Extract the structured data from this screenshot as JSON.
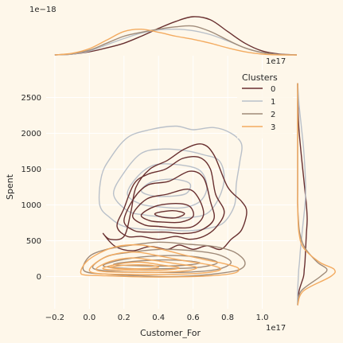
{
  "chart_data": {
    "type": "kde-joint",
    "xlabel": "Customer_For",
    "ylabel": "Spent",
    "x_offset_label": "1e17",
    "top_marginal_offset_label": "1e−18",
    "xlim": [
      -0.25,
      1.2
    ],
    "ylim": [
      -450,
      2950
    ],
    "x_ticks": [
      "−0.2",
      "0.0",
      "0.2",
      "0.4",
      "0.6",
      "0.8",
      "1.0"
    ],
    "x_tick_values": [
      -0.2,
      0.0,
      0.2,
      0.4,
      0.6,
      0.8,
      1.0
    ],
    "y_ticks": [
      "0",
      "500",
      "1000",
      "1500",
      "2000",
      "2500"
    ],
    "y_tick_values": [
      0,
      500,
      1000,
      1500,
      2000,
      2500
    ],
    "grid": true,
    "legend": {
      "title": "Clusters",
      "placement": "top-right"
    },
    "series": [
      {
        "name": "0",
        "color": "#682F2F",
        "contours": [
          [
            [
              0.08,
              600
            ],
            [
              0.12,
              520
            ],
            [
              0.2,
              560
            ],
            [
              0.24,
              900
            ],
            [
              0.27,
              1250
            ],
            [
              0.35,
              1500
            ],
            [
              0.45,
              1620
            ],
            [
              0.55,
              1780
            ],
            [
              0.65,
              1850
            ],
            [
              0.72,
              1700
            ],
            [
              0.8,
              1250
            ],
            [
              0.88,
              1050
            ],
            [
              0.91,
              900
            ],
            [
              0.88,
              650
            ],
            [
              0.82,
              520
            ],
            [
              0.76,
              380
            ],
            [
              0.68,
              430
            ],
            [
              0.6,
              380
            ],
            [
              0.52,
              440
            ],
            [
              0.45,
              380
            ],
            [
              0.35,
              420
            ],
            [
              0.25,
              360
            ],
            [
              0.15,
              420
            ]
          ],
          [
            [
              0.16,
              700
            ],
            [
              0.2,
              950
            ],
            [
              0.26,
              1300
            ],
            [
              0.34,
              1430
            ],
            [
              0.44,
              1500
            ],
            [
              0.54,
              1650
            ],
            [
              0.64,
              1660
            ],
            [
              0.7,
              1500
            ],
            [
              0.73,
              1150
            ],
            [
              0.78,
              900
            ],
            [
              0.73,
              680
            ],
            [
              0.66,
              560
            ],
            [
              0.58,
              520
            ],
            [
              0.5,
              560
            ],
            [
              0.4,
              520
            ],
            [
              0.3,
              560
            ],
            [
              0.22,
              560
            ]
          ],
          [
            [
              0.2,
              780
            ],
            [
              0.26,
              1100
            ],
            [
              0.34,
              1280
            ],
            [
              0.46,
              1330
            ],
            [
              0.58,
              1470
            ],
            [
              0.66,
              1380
            ],
            [
              0.7,
              1050
            ],
            [
              0.72,
              800
            ],
            [
              0.64,
              640
            ],
            [
              0.54,
              600
            ],
            [
              0.44,
              620
            ],
            [
              0.34,
              620
            ],
            [
              0.26,
              640
            ]
          ],
          [
            [
              0.25,
              850
            ],
            [
              0.33,
              1080
            ],
            [
              0.45,
              1150
            ],
            [
              0.57,
              1220
            ],
            [
              0.63,
              1100
            ],
            [
              0.66,
              860
            ],
            [
              0.6,
              700
            ],
            [
              0.5,
              680
            ],
            [
              0.4,
              700
            ],
            [
              0.32,
              720
            ]
          ],
          [
            [
              0.3,
              860
            ],
            [
              0.38,
              980
            ],
            [
              0.5,
              1020
            ],
            [
              0.58,
              980
            ],
            [
              0.6,
              840
            ],
            [
              0.53,
              760
            ],
            [
              0.43,
              760
            ],
            [
              0.35,
              780
            ]
          ],
          [
            [
              0.38,
              880
            ],
            [
              0.48,
              920
            ],
            [
              0.55,
              880
            ],
            [
              0.5,
              820
            ],
            [
              0.42,
              830
            ]
          ]
        ]
      },
      {
        "name": "1",
        "color": "#B9C0C9",
        "contours": [
          [
            [
              0.06,
              1000
            ],
            [
              0.07,
              1400
            ],
            [
              0.12,
              1650
            ],
            [
              0.22,
              1940
            ],
            [
              0.35,
              2050
            ],
            [
              0.5,
              2100
            ],
            [
              0.6,
              2050
            ],
            [
              0.72,
              2080
            ],
            [
              0.82,
              2000
            ],
            [
              0.88,
              1850
            ],
            [
              0.87,
              1600
            ],
            [
              0.85,
              1300
            ],
            [
              0.84,
              1000
            ],
            [
              0.78,
              760
            ],
            [
              0.7,
              680
            ],
            [
              0.58,
              640
            ],
            [
              0.45,
              650
            ],
            [
              0.32,
              660
            ],
            [
              0.2,
              700
            ],
            [
              0.12,
              820
            ]
          ],
          [
            [
              0.14,
              1150
            ],
            [
              0.2,
              1450
            ],
            [
              0.3,
              1720
            ],
            [
              0.42,
              1780
            ],
            [
              0.55,
              1760
            ],
            [
              0.66,
              1700
            ],
            [
              0.75,
              1620
            ],
            [
              0.78,
              1380
            ],
            [
              0.75,
              1100
            ],
            [
              0.68,
              880
            ],
            [
              0.56,
              820
            ],
            [
              0.44,
              830
            ],
            [
              0.32,
              860
            ],
            [
              0.22,
              920
            ]
          ],
          [
            [
              0.22,
              1150
            ],
            [
              0.28,
              1400
            ],
            [
              0.38,
              1560
            ],
            [
              0.52,
              1560
            ],
            [
              0.64,
              1480
            ],
            [
              0.68,
              1250
            ],
            [
              0.64,
              1050
            ],
            [
              0.54,
              960
            ],
            [
              0.42,
              970
            ],
            [
              0.3,
              1010
            ]
          ],
          [
            [
              0.3,
              1200
            ],
            [
              0.36,
              1320
            ],
            [
              0.48,
              1360
            ],
            [
              0.58,
              1300
            ],
            [
              0.56,
              1160
            ],
            [
              0.46,
              1120
            ],
            [
              0.36,
              1130
            ]
          ]
        ]
      },
      {
        "name": "2",
        "color": "#9F8A78",
        "contours": [
          [
            [
              -0.03,
              80
            ],
            [
              0.0,
              280
            ],
            [
              0.1,
              380
            ],
            [
              0.22,
              430
            ],
            [
              0.4,
              480
            ],
            [
              0.58,
              450
            ],
            [
              0.72,
              420
            ],
            [
              0.84,
              340
            ],
            [
              0.9,
              200
            ],
            [
              0.86,
              90
            ],
            [
              0.7,
              30
            ],
            [
              0.5,
              0
            ],
            [
              0.3,
              10
            ],
            [
              0.12,
              30
            ]
          ],
          [
            [
              0.02,
              120
            ],
            [
              0.1,
              280
            ],
            [
              0.24,
              340
            ],
            [
              0.42,
              380
            ],
            [
              0.6,
              360
            ],
            [
              0.74,
              310
            ],
            [
              0.82,
              200
            ],
            [
              0.74,
              100
            ],
            [
              0.56,
              60
            ],
            [
              0.36,
              60
            ],
            [
              0.16,
              70
            ]
          ],
          [
            [
              0.08,
              150
            ],
            [
              0.2,
              240
            ],
            [
              0.4,
              290
            ],
            [
              0.6,
              280
            ],
            [
              0.74,
              200
            ],
            [
              0.64,
              130
            ],
            [
              0.44,
              110
            ],
            [
              0.24,
              110
            ]
          ],
          [
            [
              0.14,
              170
            ],
            [
              0.3,
              220
            ],
            [
              0.5,
              230
            ],
            [
              0.64,
              190
            ],
            [
              0.5,
              150
            ],
            [
              0.3,
              150
            ]
          ]
        ]
      },
      {
        "name": "3",
        "color": "#F3AB60",
        "contours": [
          [
            [
              -0.05,
              60
            ],
            [
              -0.02,
              200
            ],
            [
              0.06,
              330
            ],
            [
              0.16,
              420
            ],
            [
              0.3,
              440
            ],
            [
              0.42,
              380
            ],
            [
              0.55,
              300
            ],
            [
              0.68,
              230
            ],
            [
              0.78,
              180
            ],
            [
              0.86,
              120
            ],
            [
              0.84,
              50
            ],
            [
              0.7,
              10
            ],
            [
              0.5,
              -5
            ],
            [
              0.3,
              -5
            ],
            [
              0.1,
              10
            ],
            [
              -0.02,
              20
            ]
          ],
          [
            [
              0.0,
              90
            ],
            [
              0.06,
              230
            ],
            [
              0.16,
              320
            ],
            [
              0.28,
              340
            ],
            [
              0.4,
              290
            ],
            [
              0.55,
              220
            ],
            [
              0.7,
              160
            ],
            [
              0.76,
              100
            ],
            [
              0.66,
              50
            ],
            [
              0.46,
              30
            ],
            [
              0.24,
              30
            ],
            [
              0.06,
              40
            ]
          ],
          [
            [
              0.04,
              110
            ],
            [
              0.12,
              210
            ],
            [
              0.24,
              260
            ],
            [
              0.36,
              230
            ],
            [
              0.5,
              180
            ],
            [
              0.62,
              130
            ],
            [
              0.56,
              80
            ],
            [
              0.4,
              60
            ],
            [
              0.22,
              60
            ],
            [
              0.08,
              70
            ]
          ],
          [
            [
              0.08,
              120
            ],
            [
              0.18,
              180
            ],
            [
              0.3,
              200
            ],
            [
              0.42,
              160
            ],
            [
              0.52,
              120
            ],
            [
              0.42,
              90
            ],
            [
              0.26,
              90
            ],
            [
              0.12,
              95
            ]
          ],
          [
            [
              0.12,
              130
            ],
            [
              0.22,
              160
            ],
            [
              0.34,
              160
            ],
            [
              0.4,
              130
            ],
            [
              0.3,
              110
            ],
            [
              0.18,
              110
            ]
          ]
        ]
      }
    ],
    "marginal_x": {
      "x": [
        -0.2,
        -0.1,
        0.0,
        0.1,
        0.2,
        0.3,
        0.4,
        0.5,
        0.6,
        0.7,
        0.8,
        0.9,
        1.0,
        1.1,
        1.2
      ],
      "series": [
        {
          "name": "0",
          "values": [
            0.0,
            0.02,
            0.08,
            0.18,
            0.3,
            0.48,
            0.68,
            0.86,
            0.98,
            0.9,
            0.6,
            0.3,
            0.1,
            0.02,
            0.0
          ]
        },
        {
          "name": "1",
          "values": [
            0.0,
            0.02,
            0.1,
            0.26,
            0.42,
            0.56,
            0.64,
            0.66,
            0.62,
            0.52,
            0.36,
            0.18,
            0.06,
            0.01,
            0.0
          ]
        },
        {
          "name": "2",
          "values": [
            0.0,
            0.03,
            0.12,
            0.3,
            0.48,
            0.58,
            0.66,
            0.72,
            0.74,
            0.6,
            0.38,
            0.18,
            0.06,
            0.01,
            0.0
          ]
        },
        {
          "name": "3",
          "values": [
            0.0,
            0.04,
            0.16,
            0.38,
            0.6,
            0.66,
            0.58,
            0.48,
            0.4,
            0.3,
            0.18,
            0.08,
            0.02,
            0.0,
            0.0
          ]
        }
      ]
    },
    "marginal_y": {
      "y": [
        -400,
        -200,
        0,
        100,
        200,
        400,
        600,
        800,
        1000,
        1200,
        1500,
        1800,
        2100,
        2400,
        2700
      ],
      "series": [
        {
          "name": "0",
          "values": [
            0.0,
            0.04,
            0.16,
            0.18,
            0.2,
            0.22,
            0.24,
            0.26,
            0.24,
            0.2,
            0.14,
            0.08,
            0.03,
            0.01,
            0.0
          ]
        },
        {
          "name": "1",
          "values": [
            0.0,
            0.0,
            0.02,
            0.03,
            0.05,
            0.08,
            0.12,
            0.16,
            0.2,
            0.22,
            0.2,
            0.16,
            0.1,
            0.04,
            0.0
          ]
        },
        {
          "name": "2",
          "values": [
            0.0,
            0.1,
            0.62,
            0.8,
            0.54,
            0.2,
            0.06,
            0.02,
            0.0,
            0.0,
            0.0,
            0.0,
            0.0,
            0.0,
            0.0
          ]
        },
        {
          "name": "3",
          "values": [
            0.0,
            0.16,
            0.9,
            1.0,
            0.6,
            0.16,
            0.04,
            0.01,
            0.0,
            0.0,
            0.0,
            0.0,
            0.0,
            0.0,
            0.0
          ]
        }
      ]
    }
  }
}
